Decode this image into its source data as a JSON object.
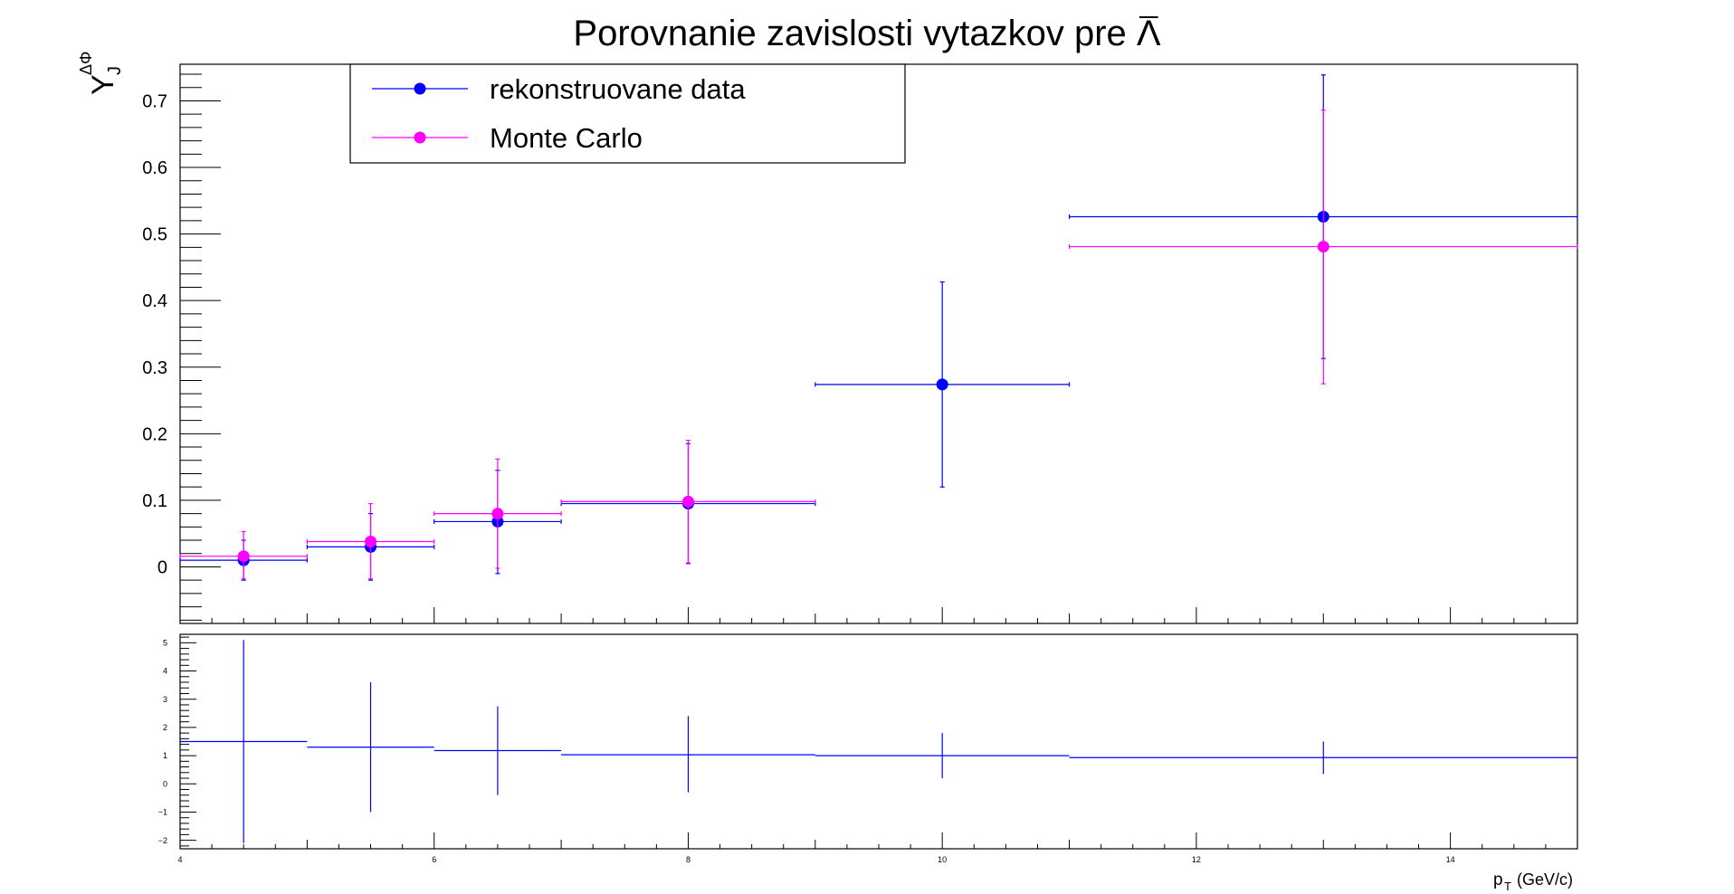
{
  "title": "Porovnanie zavislosti vytazkov pre Λ",
  "ylabel": {
    "main": "Y",
    "sub": "J",
    "sup": "ΔΦ"
  },
  "xlabel": {
    "main": "p",
    "sub": "T",
    "unit": "(GeV/c)"
  },
  "colors": {
    "data": "#0000ff",
    "mc": "#ff00ff",
    "axis": "#000000"
  },
  "chart_data": [
    {
      "type": "scatter",
      "panel": "top",
      "title": "Porovnanie zavislosti vytazkov pre Λ",
      "xlim": [
        4,
        15
      ],
      "ylim": [
        -0.085,
        0.755
      ],
      "yticks": [
        0,
        0.1,
        0.2,
        0.3,
        0.4,
        0.5,
        0.6,
        0.7
      ],
      "ytick_labels": [
        "0",
        "0.1",
        "0.2",
        "0.3",
        "0.4",
        "0.5",
        "0.6",
        "0.7"
      ],
      "legend_position": "top-left",
      "series": [
        {
          "name": "rekonstruovane data",
          "color": "#0000ff",
          "points": [
            {
              "x": 4.5,
              "xlo": 4,
              "xhi": 5,
              "y": 0.01,
              "ylo": -0.02,
              "yhi": 0.04
            },
            {
              "x": 5.5,
              "xlo": 5,
              "xhi": 6,
              "y": 0.03,
              "ylo": -0.02,
              "yhi": 0.08
            },
            {
              "x": 6.5,
              "xlo": 6,
              "xhi": 7,
              "y": 0.068,
              "ylo": -0.01,
              "yhi": 0.145
            },
            {
              "x": 8,
              "xlo": 7,
              "xhi": 9,
              "y": 0.095,
              "ylo": 0.005,
              "yhi": 0.185
            },
            {
              "x": 10,
              "xlo": 9,
              "xhi": 11,
              "y": 0.274,
              "ylo": 0.12,
              "yhi": 0.428
            },
            {
              "x": 13,
              "xlo": 11,
              "xhi": 15,
              "y": 0.526,
              "ylo": 0.313,
              "yhi": 0.739
            }
          ]
        },
        {
          "name": "Monte Carlo",
          "color": "#ff00ff",
          "points": [
            {
              "x": 4.5,
              "xlo": 4,
              "xhi": 5,
              "y": 0.016,
              "ylo": -0.018,
              "yhi": 0.053
            },
            {
              "x": 5.5,
              "xlo": 5,
              "xhi": 6,
              "y": 0.038,
              "ylo": -0.018,
              "yhi": 0.095
            },
            {
              "x": 6.5,
              "xlo": 6,
              "xhi": 7,
              "y": 0.08,
              "ylo": -0.002,
              "yhi": 0.162
            },
            {
              "x": 8,
              "xlo": 7,
              "xhi": 9,
              "y": 0.098,
              "ylo": 0.006,
              "yhi": 0.19
            },
            {
              "x": 13,
              "xlo": 11,
              "xhi": 15,
              "y": 0.481,
              "ylo": 0.275,
              "yhi": 0.686
            }
          ]
        }
      ]
    },
    {
      "type": "scatter",
      "panel": "bottom",
      "xlim": [
        4,
        15
      ],
      "ylim": [
        -2.3,
        5.3
      ],
      "yticks": [
        -2,
        -1,
        0,
        1,
        2,
        3,
        4,
        5
      ],
      "ytick_labels": [
        "−2",
        "−1",
        "0",
        "1",
        "2",
        "3",
        "4",
        "5"
      ],
      "xticks": [
        4,
        6,
        8,
        10,
        12,
        14
      ],
      "xtick_labels": [
        "4",
        "6",
        "8",
        "10",
        "12",
        "14"
      ],
      "xlabel": "p_T (GeV/c)",
      "series": [
        {
          "color": "#0000ff",
          "points": [
            {
              "x": 4.5,
              "xlo": 4,
              "xhi": 5,
              "y": 1.5,
              "ylo": -2.1,
              "yhi": 5.1
            },
            {
              "x": 5.5,
              "xlo": 5,
              "xhi": 6,
              "y": 1.3,
              "ylo": -1.0,
              "yhi": 3.6
            },
            {
              "x": 6.5,
              "xlo": 6,
              "xhi": 7,
              "y": 1.18,
              "ylo": -0.4,
              "yhi": 2.75
            },
            {
              "x": 8,
              "xlo": 7,
              "xhi": 9,
              "y": 1.03,
              "ylo": -0.3,
              "yhi": 2.4
            },
            {
              "x": 10,
              "xlo": 9,
              "xhi": 11,
              "y": 1.0,
              "ylo": 0.2,
              "yhi": 1.8
            },
            {
              "x": 13,
              "xlo": 11,
              "xhi": 15,
              "y": 0.93,
              "ylo": 0.35,
              "yhi": 1.5
            }
          ]
        }
      ]
    }
  ]
}
